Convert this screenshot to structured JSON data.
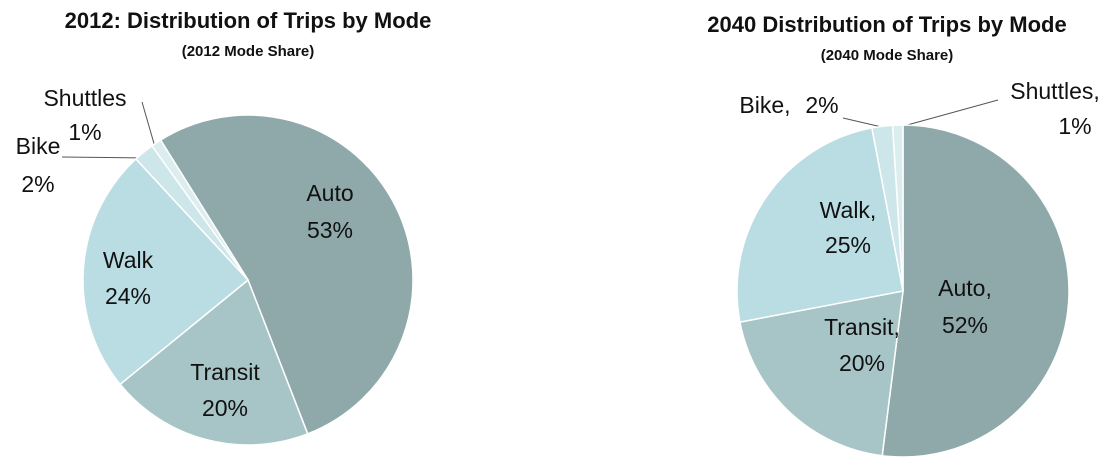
{
  "chart_data": [
    {
      "type": "pie",
      "title": "2012: Distribution of Trips by Mode",
      "subtitle": "(2012 Mode Share)",
      "categories": [
        "Auto",
        "Transit",
        "Walk",
        "Bike",
        "Shuttles"
      ],
      "values": [
        53,
        20,
        24,
        2,
        1
      ],
      "value_labels": [
        "53%",
        "20%",
        "24%",
        "2%",
        "1%"
      ],
      "colors": [
        "#8fa9aa",
        "#a7c4c6",
        "#b9dde2",
        "#cde6e9",
        "#dbedef"
      ]
    },
    {
      "type": "pie",
      "title": "2040 Distribution of Trips by Mode",
      "subtitle": "(2040 Mode Share)",
      "categories": [
        "Auto,",
        "Transit,",
        "Walk,",
        "Bike,",
        "Shuttles,"
      ],
      "values": [
        52,
        20,
        25,
        2,
        1
      ],
      "value_labels": [
        "52%",
        "20%",
        "25%",
        "2%",
        "1%"
      ],
      "colors": [
        "#8fa9aa",
        "#a7c4c6",
        "#b9dde2",
        "#cde6e9",
        "#dbedef"
      ]
    }
  ]
}
